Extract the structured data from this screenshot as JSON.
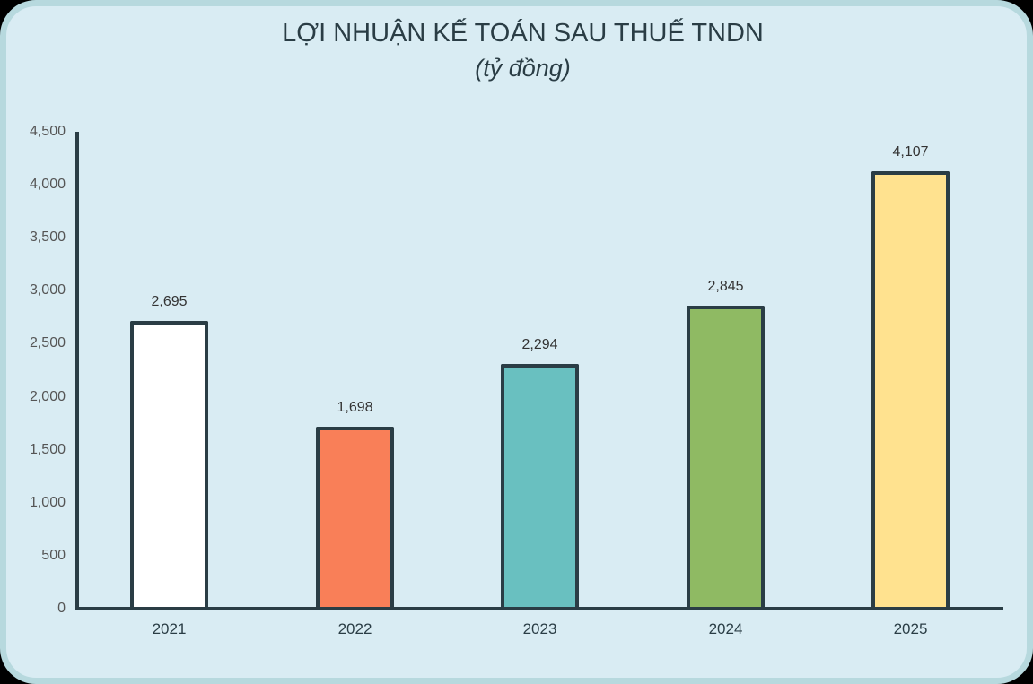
{
  "chart_data": {
    "type": "bar",
    "title": "LỢI NHUẬN KẾ TOÁN SAU THUẾ TNDN",
    "subtitle": "(tỷ đồng)",
    "xlabel": "",
    "ylabel": "",
    "categories": [
      "2021",
      "2022",
      "2023",
      "2024",
      "2025"
    ],
    "values": [
      2695,
      1698,
      2294,
      2845,
      4107
    ],
    "value_labels": [
      "2,695",
      "1,698",
      "2,294",
      "2,845",
      "4,107"
    ],
    "colors": [
      "#ffffff",
      "#f97f58",
      "#69c0c0",
      "#8fba63",
      "#ffe28f"
    ],
    "ylim": [
      0,
      4500
    ],
    "yticks": [
      0,
      500,
      1000,
      1500,
      2000,
      2500,
      3000,
      3500,
      4000,
      4500
    ],
    "ytick_labels": [
      "0",
      "500",
      "1,000",
      "1,500",
      "2,000",
      "2,500",
      "3,000",
      "3,500",
      "4,000",
      "4,500"
    ],
    "grid": false,
    "legend": "none"
  },
  "header": {
    "title": "LỢI NHUẬN KẾ TOÁN SAU THUẾ TNDN",
    "subtitle": "(tỷ đồng)"
  },
  "colors": {
    "background": "#d9ecf3",
    "card_border": "#b7d9de",
    "axis": "#2a3d45"
  }
}
